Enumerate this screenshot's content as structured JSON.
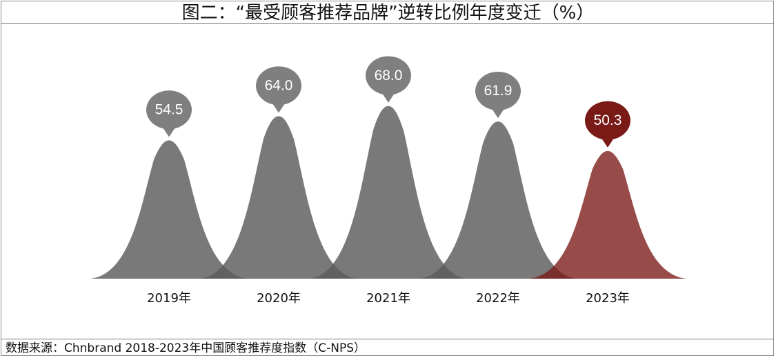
{
  "title": "图二：“最受顾客推荐品牌”逆转比例年度变迁（%）",
  "source": "数据来源：Chnbrand 2018-2023年中国顾客推荐度指数（C-NPS）",
  "chart_data": {
    "type": "area",
    "title": "图二：“最受顾客推荐品牌”逆转比例年度变迁（%）",
    "categories": [
      "2019年",
      "2020年",
      "2021年",
      "2022年",
      "2023年"
    ],
    "values": [
      54.5,
      64.0,
      68.0,
      61.9,
      50.3
    ],
    "value_labels": [
      "54.5",
      "64.0",
      "68.0",
      "61.9",
      "50.3"
    ],
    "highlight_index": 4,
    "colors": {
      "default": "#5c5c5c",
      "highlight": "#7a1a17"
    },
    "ylim": [
      0,
      75
    ],
    "grid": false,
    "legend": "none"
  }
}
